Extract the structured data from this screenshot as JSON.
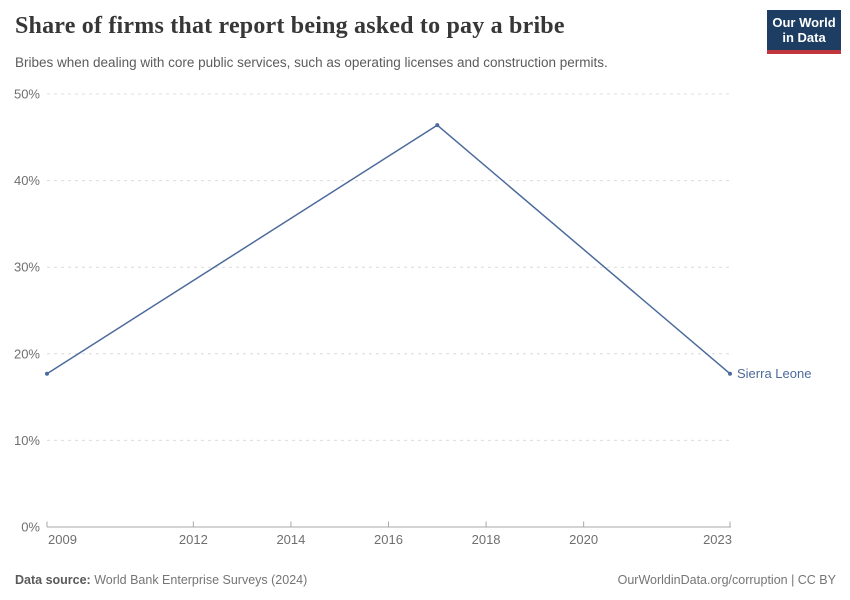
{
  "header": {
    "title": "Share of firms that report being asked to pay a bribe",
    "subtitle": "Bribes when dealing with core public services, such as operating licenses and construction permits.",
    "logo": {
      "line1": "Our World",
      "line2": "in Data",
      "bg_color": "#1d3d63",
      "accent_color": "#c0363c"
    }
  },
  "chart_data": {
    "type": "line",
    "title": "Share of firms that report being asked to pay a bribe",
    "x": [
      2009,
      2017,
      2023
    ],
    "series": [
      {
        "name": "Sierra Leone",
        "color": "#4c6a9c",
        "values": [
          17.7,
          46.4,
          17.7
        ]
      }
    ],
    "xlim": [
      2009,
      2023
    ],
    "ylim": [
      0,
      50
    ],
    "x_ticks": [
      "2009",
      "2012",
      "2014",
      "2016",
      "2018",
      "2020",
      "2023"
    ],
    "x_tick_values": [
      2009,
      2012,
      2014,
      2016,
      2018,
      2020,
      2023
    ],
    "y_ticks": [
      0,
      10,
      20,
      30,
      40,
      50
    ],
    "y_tick_suffix": "%",
    "grid": "horizontal-dashed",
    "legend_position": "end-of-line-label"
  },
  "footer": {
    "source_label": "Data source:",
    "source_text": " World Bank Enterprise Surveys (2024)",
    "credit": "OurWorldinData.org/corruption | CC BY"
  }
}
